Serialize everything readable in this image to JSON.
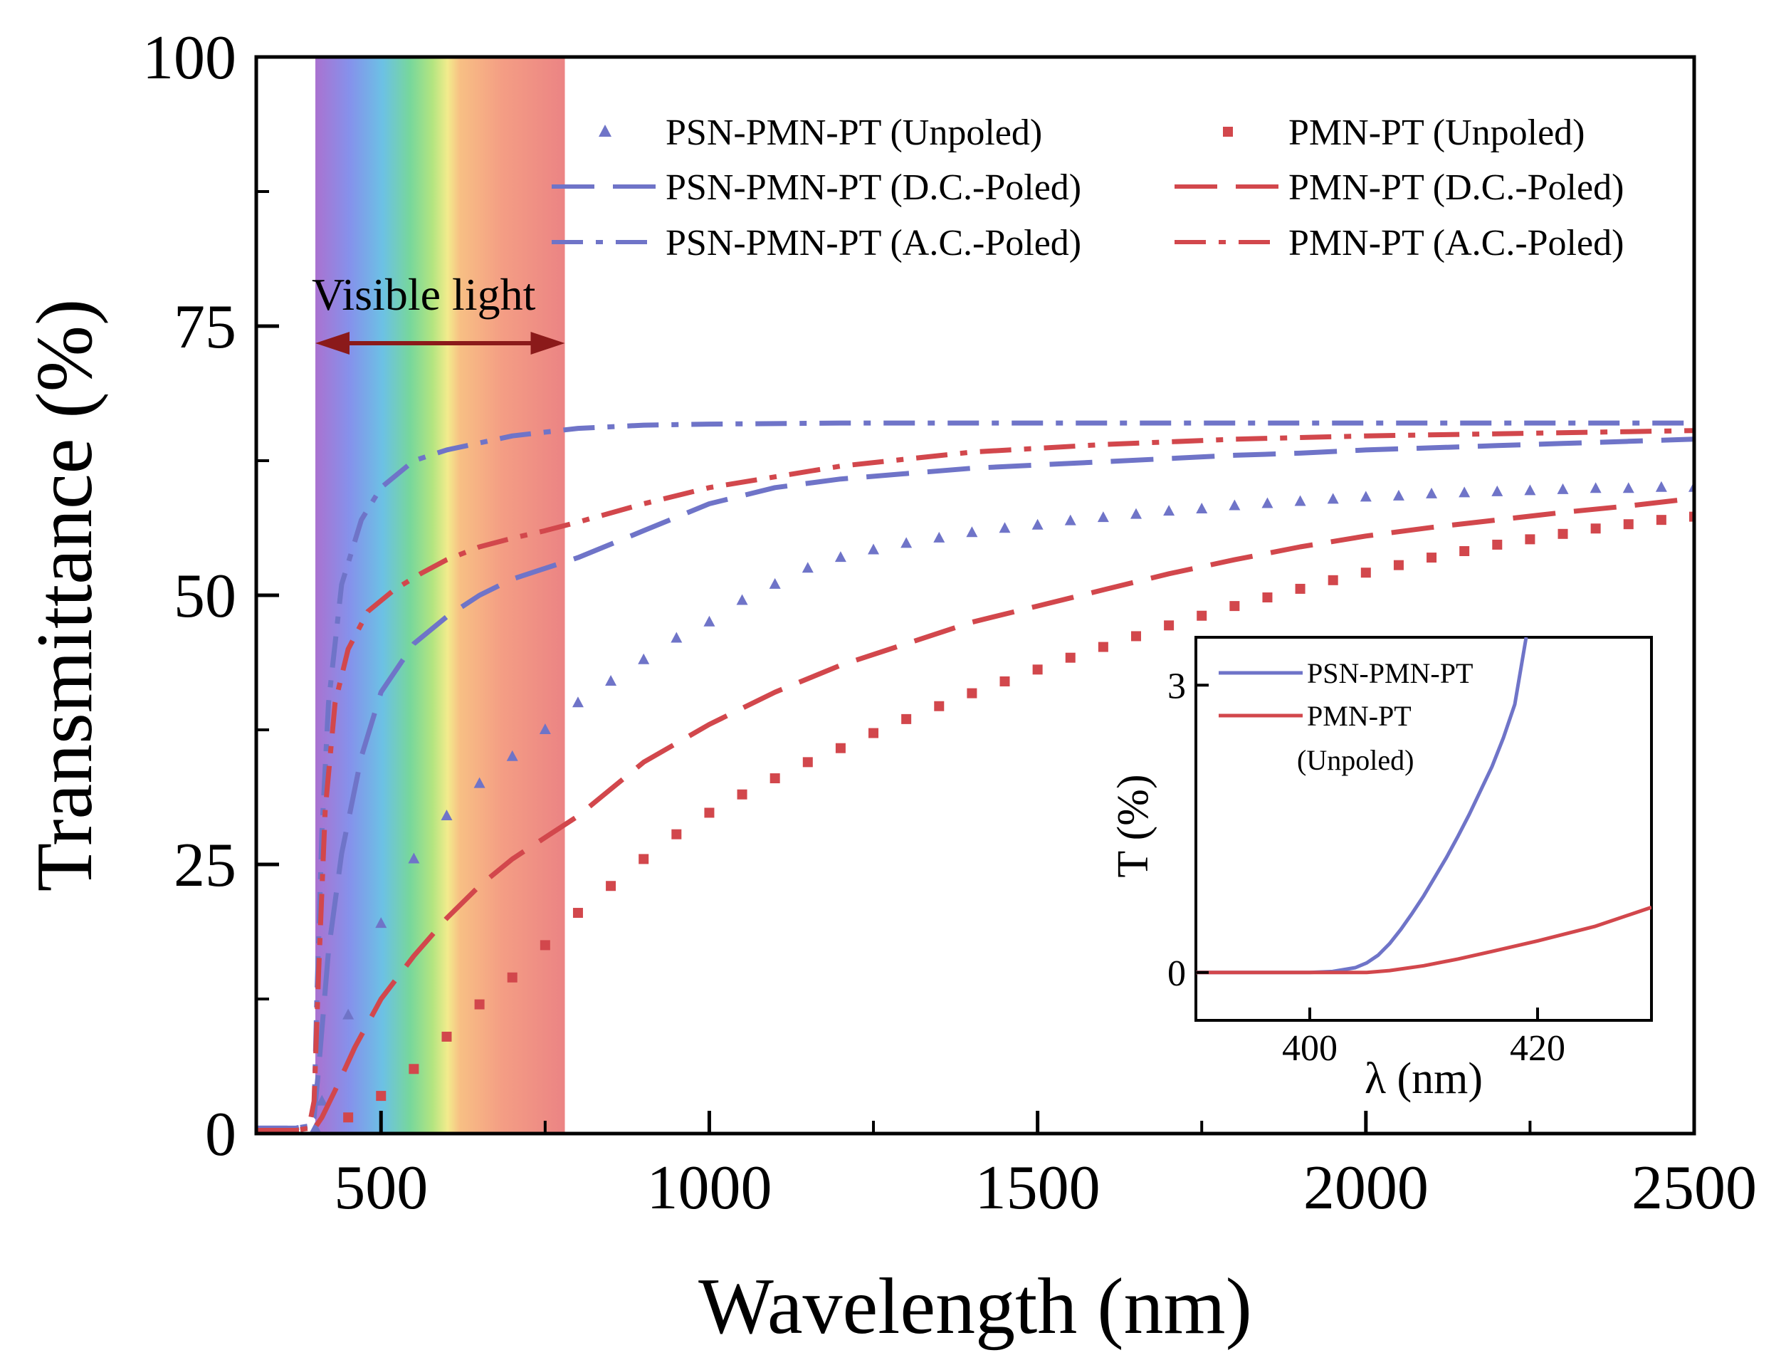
{
  "chart_data": [
    {
      "type": "line",
      "xlabel": "Wavelength (nm)",
      "ylabel": "Transmittance (%)",
      "xlim": [
        310,
        2500
      ],
      "ylim": [
        0,
        100
      ],
      "x_ticks": [
        500,
        1000,
        1500,
        2000,
        2500
      ],
      "y_ticks": [
        0,
        25,
        50,
        75,
        100
      ],
      "x_tick_labels": [
        "500",
        "1000",
        "1500",
        "2000",
        "2500"
      ],
      "y_tick_labels": [
        "0",
        "25",
        "50",
        "75",
        "100"
      ],
      "grid": false,
      "legend_position": "top-right",
      "colors": {
        "psn": "#6f74c8",
        "pmn": "#d2474c",
        "arrow": "#8b1a1a",
        "annotation_text": "#8b1a1a"
      },
      "annotation": {
        "text": "Visible light",
        "x_range": [
          400,
          780
        ]
      },
      "series": [
        {
          "name": "PSN-PMN-PT (Unpoled)",
          "material": "psn",
          "style": "triangle",
          "x": [
            400,
            410,
            450,
            500,
            550,
            600,
            650,
            700,
            750,
            800,
            850,
            900,
            950,
            1000,
            1050,
            1100,
            1150,
            1200,
            1250,
            1300,
            1350,
            1400,
            1450,
            1500,
            1550,
            1600,
            1650,
            1700,
            1750,
            1800,
            1850,
            1900,
            1950,
            2000,
            2050,
            2100,
            2150,
            2200,
            2250,
            2300,
            2350,
            2400,
            2450,
            2500
          ],
          "values": [
            0.5,
            3,
            11,
            19.5,
            25.5,
            29.5,
            32.5,
            35,
            37.5,
            40,
            42,
            44,
            46,
            47.5,
            49.5,
            51,
            52.5,
            53.5,
            54.2,
            54.8,
            55.3,
            55.8,
            56.2,
            56.5,
            56.9,
            57.2,
            57.5,
            57.8,
            58.0,
            58.3,
            58.5,
            58.7,
            58.9,
            59.1,
            59.2,
            59.4,
            59.5,
            59.6,
            59.7,
            59.8,
            59.9,
            59.9,
            60.0,
            60.0
          ]
        },
        {
          "name": "PMN-PT (Unpoled)",
          "material": "pmn",
          "style": "square",
          "x": [
            450,
            500,
            550,
            600,
            650,
            700,
            750,
            800,
            850,
            900,
            950,
            1000,
            1050,
            1100,
            1150,
            1200,
            1250,
            1300,
            1350,
            1400,
            1450,
            1500,
            1550,
            1600,
            1650,
            1700,
            1750,
            1800,
            1850,
            1900,
            1950,
            2000,
            2050,
            2100,
            2150,
            2200,
            2250,
            2300,
            2350,
            2400,
            2450,
            2500
          ],
          "values": [
            1.5,
            3.5,
            6,
            9,
            12,
            14.5,
            17.5,
            20.5,
            23,
            25.5,
            27.8,
            29.8,
            31.5,
            33,
            34.5,
            35.8,
            37.2,
            38.5,
            39.7,
            40.9,
            42.0,
            43.1,
            44.2,
            45.2,
            46.2,
            47.2,
            48.1,
            49.0,
            49.8,
            50.6,
            51.4,
            52.1,
            52.8,
            53.5,
            54.1,
            54.7,
            55.2,
            55.7,
            56.2,
            56.6,
            57.0,
            57.3
          ]
        },
        {
          "name": "PSN-PMN-PT (D.C.-Poled)",
          "material": "psn",
          "style": "dash",
          "x": [
            310,
            370,
            385,
            398,
            405,
            420,
            440,
            470,
            500,
            550,
            600,
            650,
            700,
            750,
            800,
            900,
            1000,
            1100,
            1200,
            1300,
            1400,
            1500,
            1600,
            1700,
            1800,
            1900,
            2000,
            2100,
            2200,
            2300,
            2400,
            2500
          ],
          "values": [
            0.5,
            0.5,
            0.7,
            1.5,
            6,
            17,
            26,
            35,
            41,
            45.5,
            48,
            50,
            51.5,
            52.5,
            53.5,
            56,
            58.5,
            60,
            60.8,
            61.3,
            61.8,
            62.1,
            62.4,
            62.7,
            63.0,
            63.2,
            63.5,
            63.7,
            63.9,
            64.1,
            64.3,
            64.5
          ]
        },
        {
          "name": "PMN-PT (D.C.-Poled)",
          "material": "pmn",
          "style": "dash",
          "x": [
            310,
            370,
            390,
            400,
            410,
            430,
            460,
            500,
            550,
            600,
            650,
            700,
            750,
            800,
            850,
            900,
            1000,
            1100,
            1200,
            1300,
            1400,
            1500,
            1600,
            1700,
            1800,
            1900,
            2000,
            2100,
            2200,
            2300,
            2400,
            2500
          ],
          "values": [
            0.3,
            0.3,
            0.4,
            0.6,
            1.5,
            4,
            8,
            12.5,
            16.5,
            20,
            23,
            25.5,
            27.5,
            29.5,
            32,
            34.5,
            38,
            41,
            43.5,
            45.5,
            47.5,
            49,
            50.5,
            52,
            53.3,
            54.5,
            55.5,
            56.3,
            57.0,
            57.7,
            58.3,
            59.0
          ]
        },
        {
          "name": "PSN-PMN-PT (A.C.-Poled)",
          "material": "psn",
          "style": "dashdot",
          "x": [
            310,
            370,
            390,
            398,
            402,
            410,
            420,
            440,
            470,
            500,
            550,
            600,
            700,
            800,
            900,
            1000,
            1200,
            1400,
            1600,
            1800,
            2000,
            2200,
            2400,
            2500
          ],
          "values": [
            0.5,
            0.5,
            0.7,
            2,
            12,
            28,
            40,
            51,
            57,
            60,
            62.5,
            63.5,
            64.8,
            65.5,
            65.8,
            65.9,
            66.0,
            66.0,
            66.0,
            66.0,
            66.0,
            66.0,
            66.0,
            66.0
          ]
        },
        {
          "name": "PMN-PT (A.C.-Poled)",
          "material": "pmn",
          "style": "dashdot",
          "x": [
            310,
            370,
            390,
            398,
            405,
            415,
            430,
            450,
            480,
            520,
            560,
            600,
            650,
            700,
            750,
            800,
            900,
            1000,
            1200,
            1400,
            1600,
            1800,
            2000,
            2200,
            2400,
            2500
          ],
          "values": [
            0.3,
            0.3,
            0.5,
            3,
            15,
            30,
            40,
            45,
            48.5,
            50.5,
            52,
            53.3,
            54.5,
            55.3,
            56,
            56.8,
            58.5,
            60,
            62,
            63.3,
            64,
            64.5,
            64.8,
            65.0,
            65.2,
            65.3
          ]
        }
      ]
    },
    {
      "type": "line",
      "inset": true,
      "xlabel": "λ (nm)",
      "ylabel": "T (%)",
      "xlim": [
        390,
        430
      ],
      "ylim": [
        -0.5,
        3.5
      ],
      "x_ticks": [
        400,
        420
      ],
      "y_ticks": [
        0,
        3
      ],
      "x_tick_labels": [
        "400",
        "420"
      ],
      "y_tick_labels": [
        "0",
        "3"
      ],
      "legend_position": "top-left",
      "series": [
        {
          "name": "PSN-PMN-PT",
          "material": "psn",
          "x": [
            390,
            395,
            400,
            402,
            404,
            405,
            406,
            407,
            408,
            409,
            410,
            411,
            412,
            413,
            414,
            415,
            416,
            417,
            418,
            419
          ],
          "values": [
            0,
            0,
            0,
            0.01,
            0.05,
            0.1,
            0.18,
            0.3,
            0.45,
            0.62,
            0.8,
            1.0,
            1.2,
            1.42,
            1.65,
            1.9,
            2.15,
            2.45,
            2.8,
            3.5
          ]
        },
        {
          "name": "PMN-PT\n(Unpoled)",
          "legend_lines": [
            "PMN-PT",
            "(Unpoled)"
          ],
          "material": "pmn",
          "x": [
            390,
            400,
            403,
            405,
            407,
            410,
            413,
            416,
            420,
            425,
            430
          ],
          "values": [
            0,
            0,
            0,
            0,
            0.02,
            0.07,
            0.14,
            0.22,
            0.33,
            0.48,
            0.68
          ]
        }
      ]
    }
  ]
}
